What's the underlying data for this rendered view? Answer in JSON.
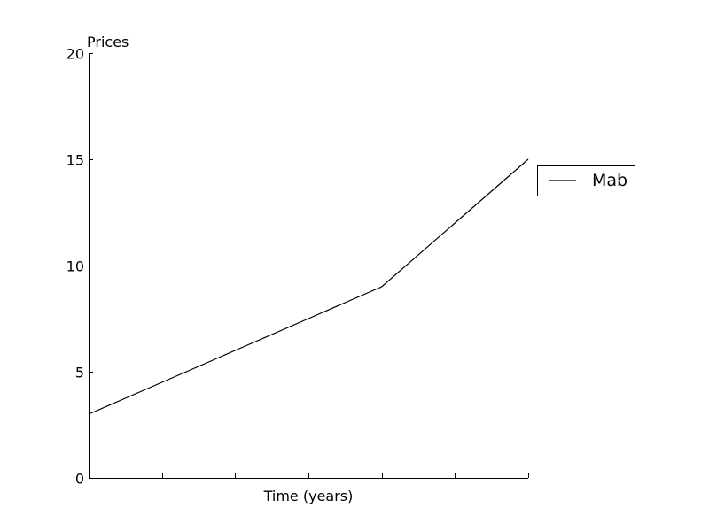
{
  "chart_data": {
    "type": "line",
    "title": "",
    "xlabel": "Time (years)",
    "ylabel": "Prices",
    "x": [
      0,
      1,
      2,
      3,
      4,
      5,
      6
    ],
    "series": [
      {
        "name": "Mab",
        "values": [
          3,
          4.5,
          6,
          7.5,
          9,
          12,
          15
        ],
        "color": "#000000"
      }
    ],
    "xlim": [
      0,
      6
    ],
    "ylim": [
      0,
      20
    ],
    "yticks": [
      0,
      5,
      10,
      15,
      20
    ],
    "ytick_labels": [
      "0",
      "5",
      "10",
      "15",
      "20"
    ],
    "xticks": [
      0,
      1,
      2,
      3,
      4,
      5,
      6
    ],
    "xtick_labels": [],
    "grid": false,
    "legend_position": "outside-right-top"
  }
}
